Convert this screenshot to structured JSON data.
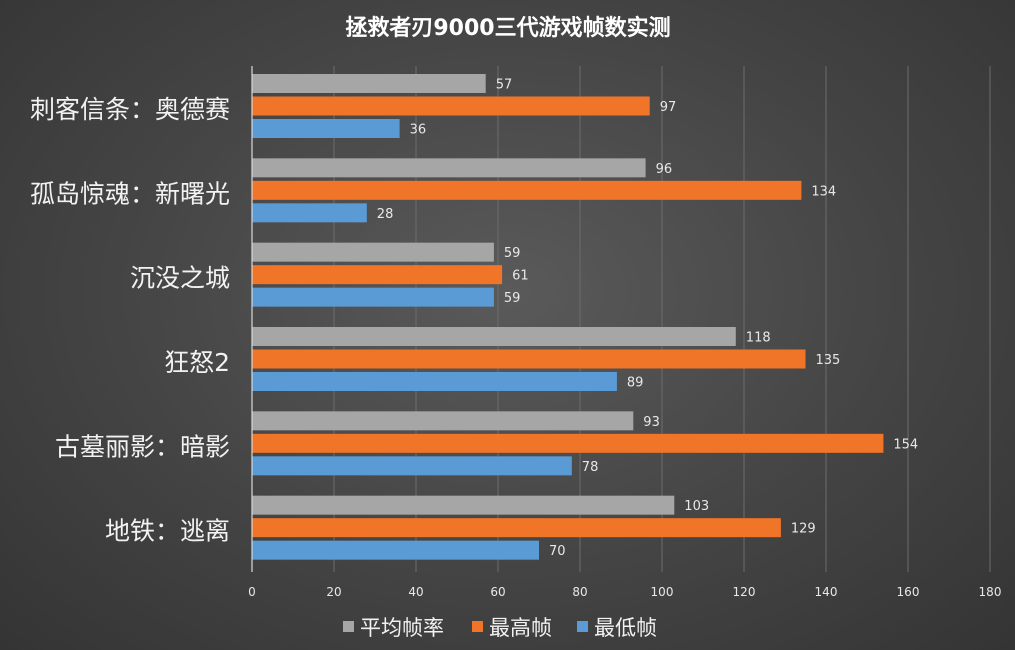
{
  "chart_data": {
    "type": "bar",
    "orientation": "horizontal",
    "title": "拯救者刃9000三代游戏帧数实测",
    "categories": [
      "刺客信条：奥德赛",
      "孤岛惊魂：新曙光",
      "沉没之城",
      "狂怒2",
      "古墓丽影：暗影",
      "地铁：逃离"
    ],
    "series": [
      {
        "name": "平均帧率",
        "color": "#a6a6a6",
        "values": [
          57,
          96,
          59,
          118,
          93,
          103
        ]
      },
      {
        "name": "最高帧",
        "color": "#f07528",
        "values": [
          97,
          134,
          61,
          135,
          154,
          129
        ]
      },
      {
        "name": "最低帧",
        "color": "#5b9bd5",
        "values": [
          36,
          28,
          59,
          89,
          78,
          70
        ]
      }
    ],
    "xlim": [
      0,
      180
    ],
    "xticks": [
      "0",
      "20",
      "40",
      "60",
      "80",
      "100",
      "120",
      "140",
      "160",
      "180"
    ],
    "grid": true,
    "legend_position": "bottom"
  }
}
